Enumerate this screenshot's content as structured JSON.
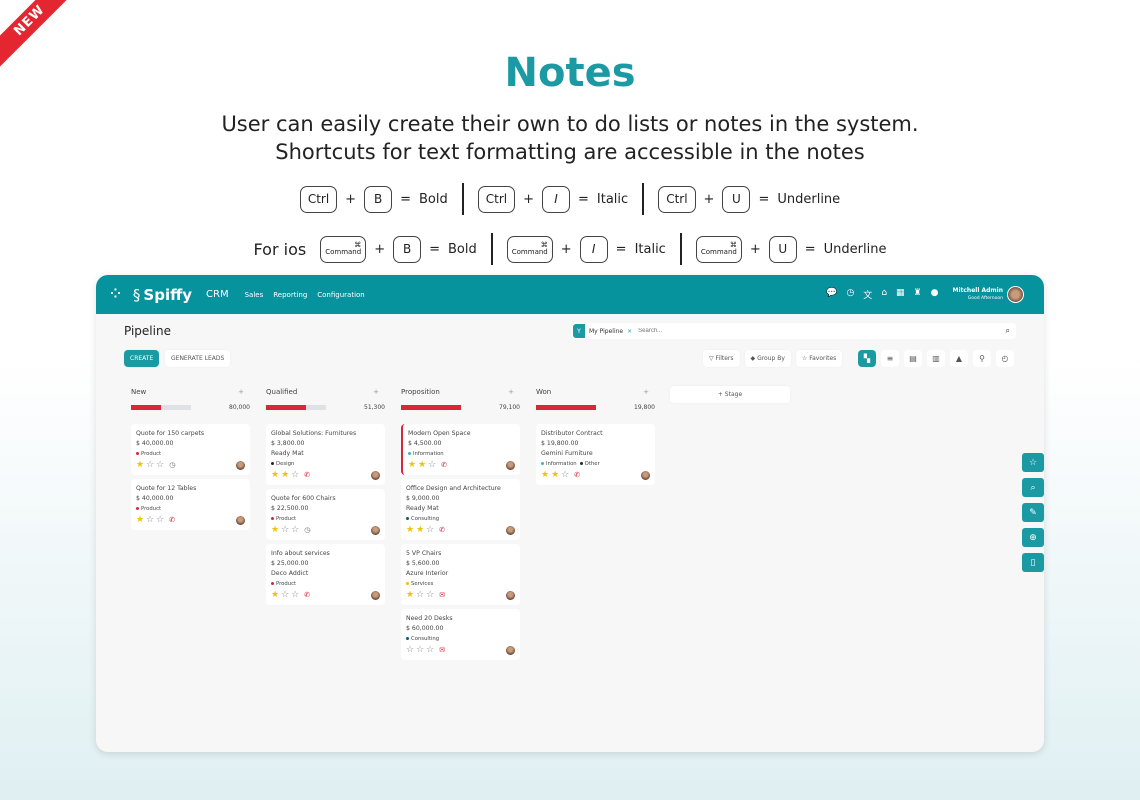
{
  "badge": "NEW",
  "heading": {
    "title": "Notes",
    "line1": "User can easily create their own to do lists or notes in the system.",
    "line2": "Shortcuts for text formatting are accessible in the notes"
  },
  "shortcuts": {
    "windows": [
      {
        "mod": "Ctrl",
        "key": "B",
        "action": "Bold"
      },
      {
        "mod": "Ctrl",
        "key": "I",
        "action": "Italic"
      },
      {
        "mod": "Ctrl",
        "key": "U",
        "action": "Underline"
      }
    ],
    "ios_label": "For ios",
    "ios_symbol": "⌘",
    "ios_mod": "Command",
    "ios": [
      {
        "key": "B",
        "action": "Bold"
      },
      {
        "key": "I",
        "action": "Italic"
      },
      {
        "key": "U",
        "action": "Underline"
      }
    ],
    "plus": "+",
    "equals": "="
  },
  "nav": {
    "brand": "Spiffy",
    "app": "CRM",
    "menu": [
      "Sales",
      "Reporting",
      "Configuration"
    ],
    "user": "Mitchell Admin",
    "greeting": "Good Afternoon",
    "accent": "#07939e"
  },
  "page": {
    "title": "Pipeline",
    "facet": "My Pipeline",
    "search_placeholder": "Search...",
    "create": "CREATE",
    "generate": "GENERATE LEADS",
    "filters": "Filters",
    "groupby": "Group By",
    "favorites": "Favorites",
    "add_stage": "+ Stage"
  },
  "columns": [
    {
      "name": "New",
      "total": "80,000",
      "progress": 0.5,
      "cards": [
        {
          "title": "Quote for 150 carpets",
          "amount": "$ 40,000.00",
          "company": "",
          "tags": [
            {
              "label": "Product",
              "color": "#d8273b"
            }
          ],
          "stars": 1,
          "activity": "clock"
        },
        {
          "title": "Quote for 12 Tables",
          "amount": "$ 40,000.00",
          "company": "",
          "tags": [
            {
              "label": "Product",
              "color": "#d8273b"
            }
          ],
          "stars": 1,
          "activity": "phone"
        }
      ]
    },
    {
      "name": "Qualified",
      "total": "51,300",
      "progress": 0.67,
      "cards": [
        {
          "title": "Global Solutions: Furnitures",
          "amount": "$ 3,800.00",
          "company": "Ready Mat",
          "tags": [
            {
              "label": "Design",
              "color": "#4a1a2a"
            }
          ],
          "stars": 2,
          "activity": "phone"
        },
        {
          "title": "Quote for 600 Chairs",
          "amount": "$ 22,500.00",
          "company": "",
          "tags": [
            {
              "label": "Product",
              "color": "#d8273b"
            }
          ],
          "stars": 1,
          "activity": "clock"
        },
        {
          "title": "Info about services",
          "amount": "$ 25,000.00",
          "company": "Deco Addict",
          "tags": [
            {
              "label": "Product",
              "color": "#d8273b"
            }
          ],
          "stars": 1,
          "activity": "phone"
        }
      ]
    },
    {
      "name": "Proposition",
      "total": "79,100",
      "progress": 1,
      "cards": [
        {
          "title": "Modern Open Space",
          "amount": "$ 4,500.00",
          "company": "",
          "tags": [
            {
              "label": "Information",
              "color": "#3bb6c9"
            }
          ],
          "stars": 2,
          "activity": "phone",
          "highlight": true
        },
        {
          "title": "Office Design and Architecture",
          "amount": "$ 9,000.00",
          "company": "Ready Mat",
          "tags": [
            {
              "label": "Consulting",
              "color": "#0b5d6b"
            }
          ],
          "stars": 2,
          "activity": "phone"
        },
        {
          "title": "5 VP Chairs",
          "amount": "$ 5,600.00",
          "company": "Azure Interior",
          "tags": [
            {
              "label": "Services",
              "color": "#f2c200"
            }
          ],
          "stars": 1,
          "activity": "mail"
        },
        {
          "title": "Need 20 Desks",
          "amount": "$ 60,000.00",
          "company": "",
          "tags": [
            {
              "label": "Consulting",
              "color": "#0b5d6b"
            }
          ],
          "stars": 0,
          "activity": "mail"
        }
      ]
    },
    {
      "name": "Won",
      "total": "19,800",
      "progress": 1,
      "cards": [
        {
          "title": "Distributor Contract",
          "amount": "$ 19,800.00",
          "company": "Gemini Furniture",
          "tags": [
            {
              "label": "Information",
              "color": "#3bb6c9"
            },
            {
              "label": "Other",
              "color": "#1a2a3a"
            }
          ],
          "stars": 2,
          "activity": "phone"
        }
      ]
    }
  ]
}
